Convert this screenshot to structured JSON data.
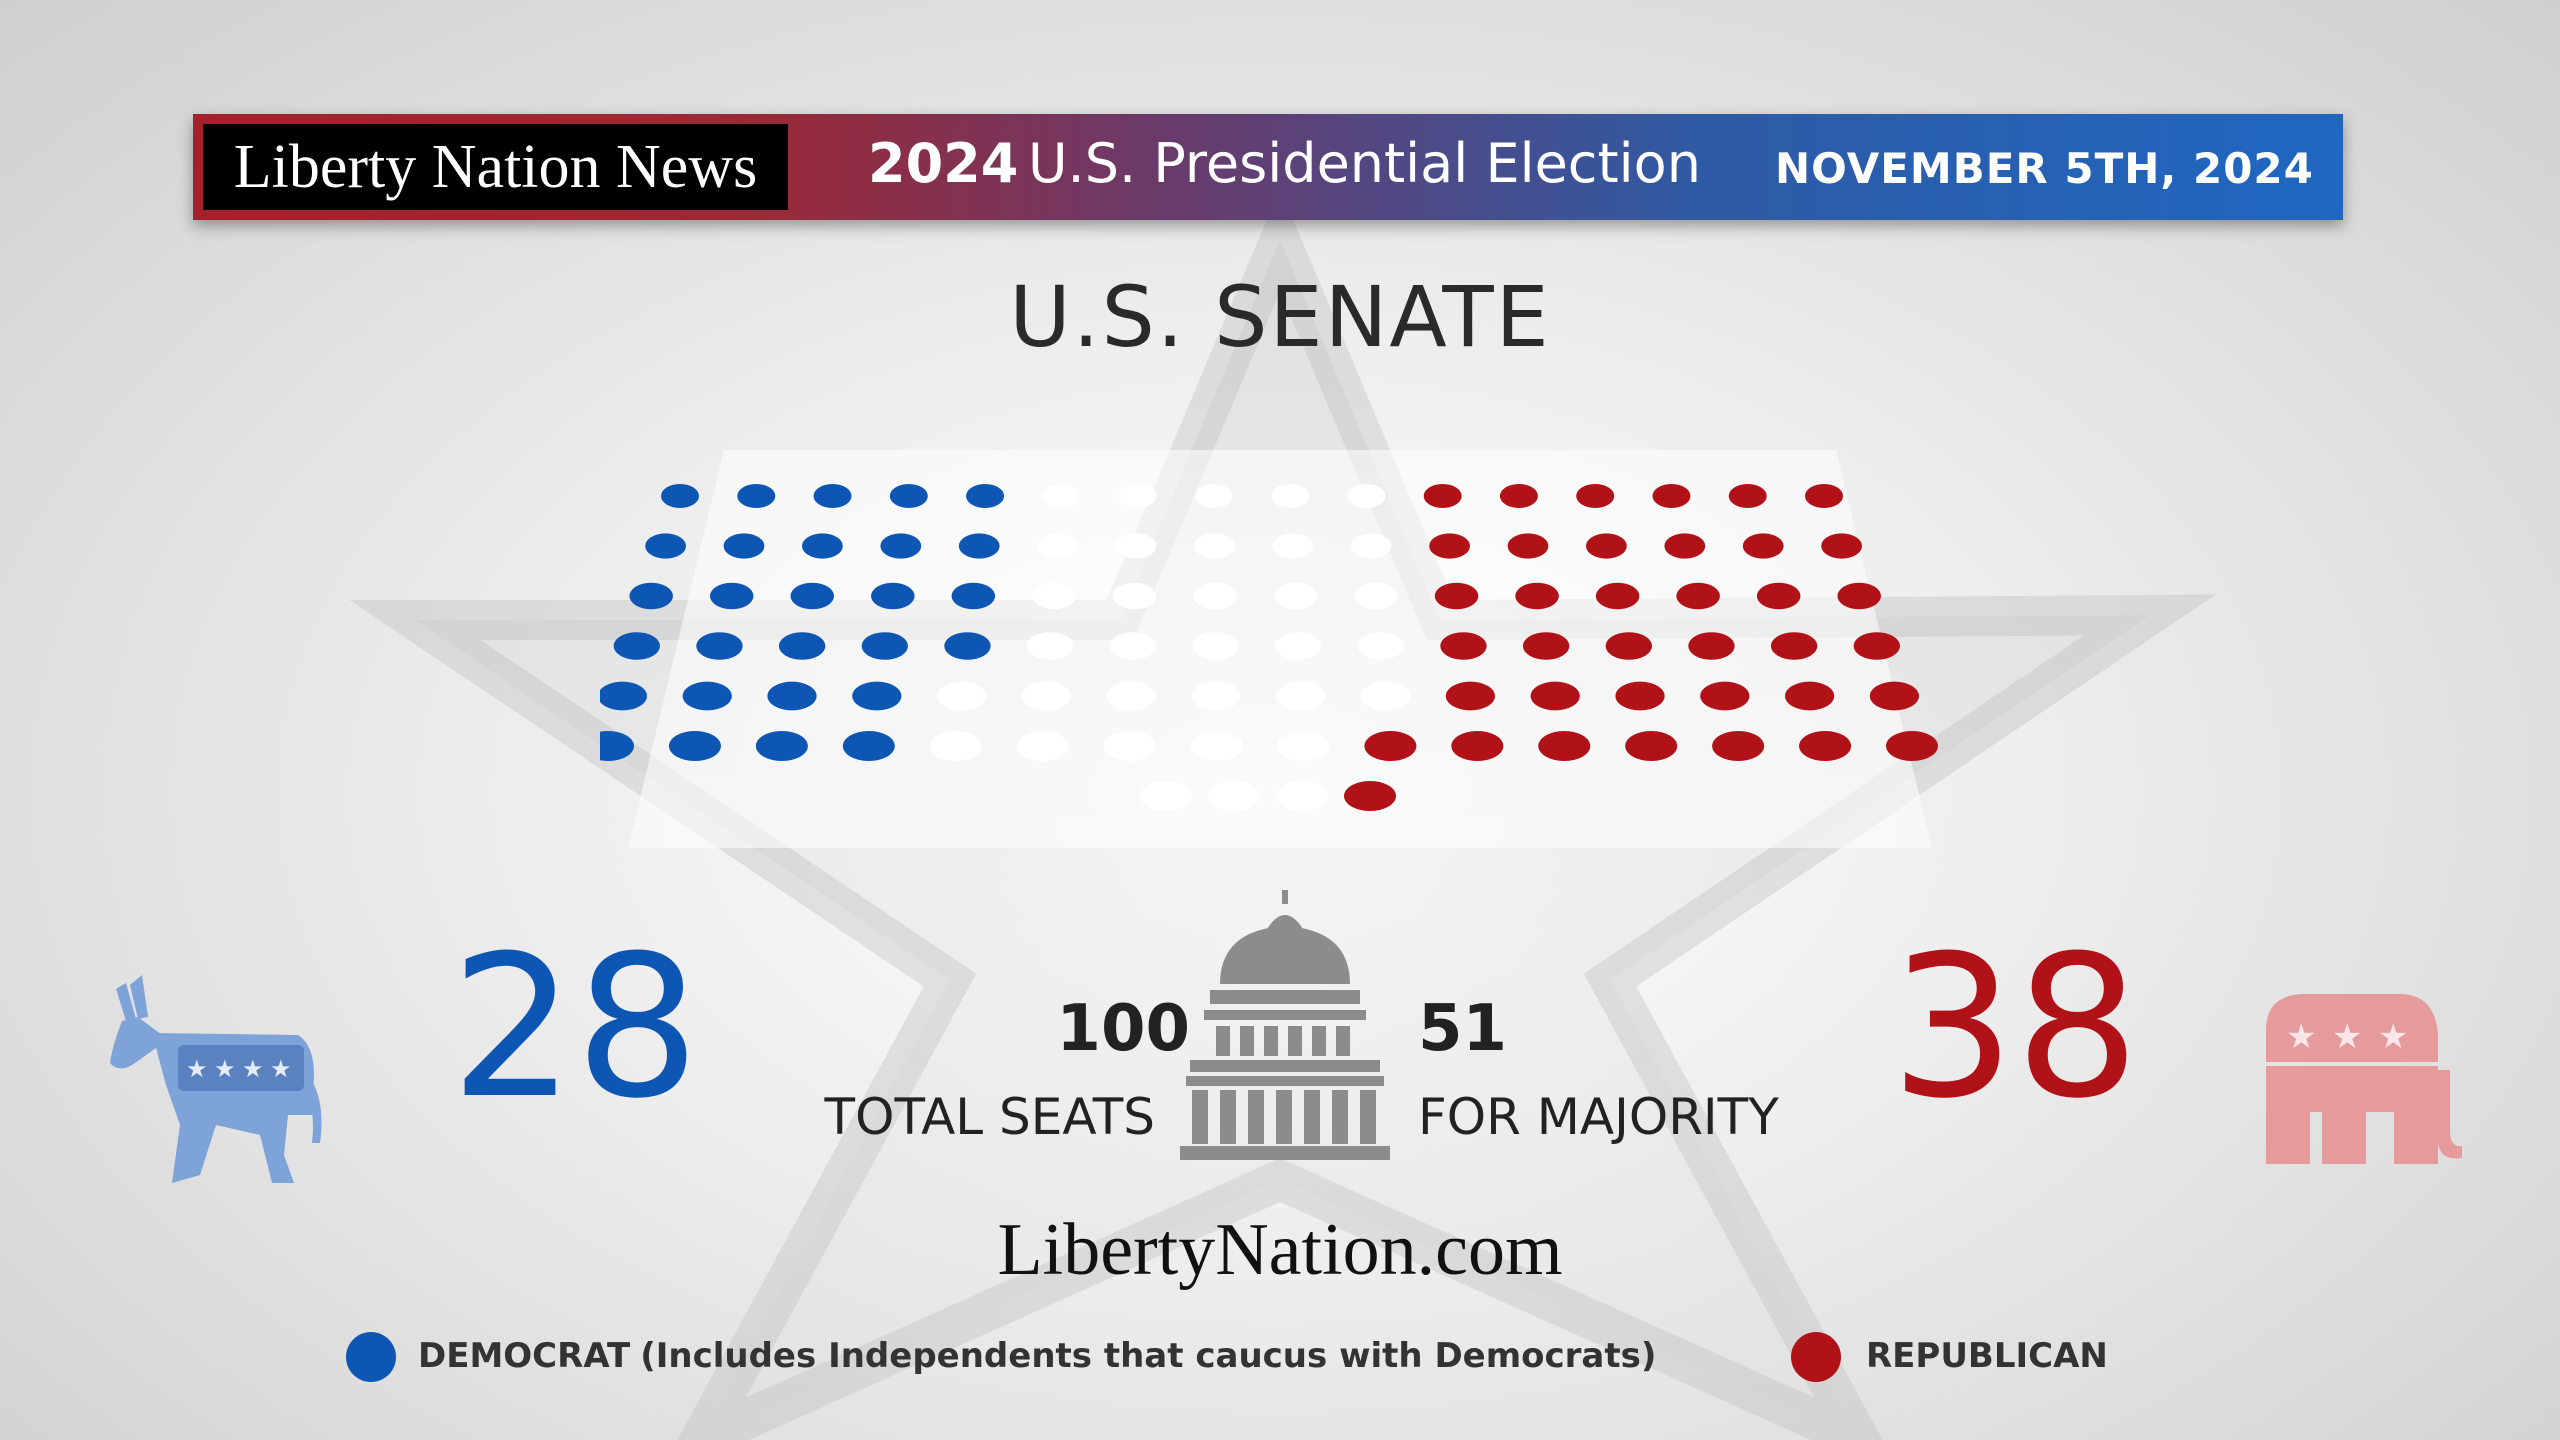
{
  "banner": {
    "brand": "Liberty Nation News",
    "year": "2024",
    "election": "U.S. Presidential Election",
    "date": "NOVEMBER 5TH, 2024"
  },
  "title": "U.S. SENATE",
  "stats": {
    "total_seats_number": "100",
    "total_seats_label": "TOTAL SEATS",
    "majority_number": "51",
    "majority_label": "FOR MAJORITY"
  },
  "website": "LibertyNation.com",
  "legend": {
    "democrat_label": "DEMOCRAT",
    "democrat_note": "(Includes Independents that caucus with Democrats)",
    "republican_label": "REPUBLICAN"
  },
  "colors": {
    "democrat": "#0d56b4",
    "republican": "#b11218",
    "undecided": "#ffffff"
  },
  "icons": [
    "democrat-donkey-icon",
    "capitol-icon",
    "republican-elephant-icon"
  ],
  "chart_data": {
    "type": "seat-chart",
    "total_seats": 100,
    "majority_threshold": 51,
    "series": [
      {
        "name": "DEMOCRAT",
        "values": [
          28
        ]
      },
      {
        "name": "REPUBLICAN",
        "values": [
          38
        ]
      }
    ],
    "undecided_seats": 34,
    "rows": [
      {
        "seats": 16,
        "democrat": 5,
        "undecided": 5,
        "republican": 6
      },
      {
        "seats": 16,
        "democrat": 5,
        "undecided": 5,
        "republican": 6
      },
      {
        "seats": 16,
        "democrat": 5,
        "undecided": 5,
        "republican": 6
      },
      {
        "seats": 16,
        "democrat": 5,
        "undecided": 5,
        "republican": 6
      },
      {
        "seats": 16,
        "democrat": 4,
        "undecided": 6,
        "republican": 6
      },
      {
        "seats": 16,
        "democrat": 4,
        "undecided": 5,
        "republican": 7
      },
      {
        "seats": 4,
        "democrat": 0,
        "undecided": 3,
        "republican": 1
      }
    ]
  }
}
